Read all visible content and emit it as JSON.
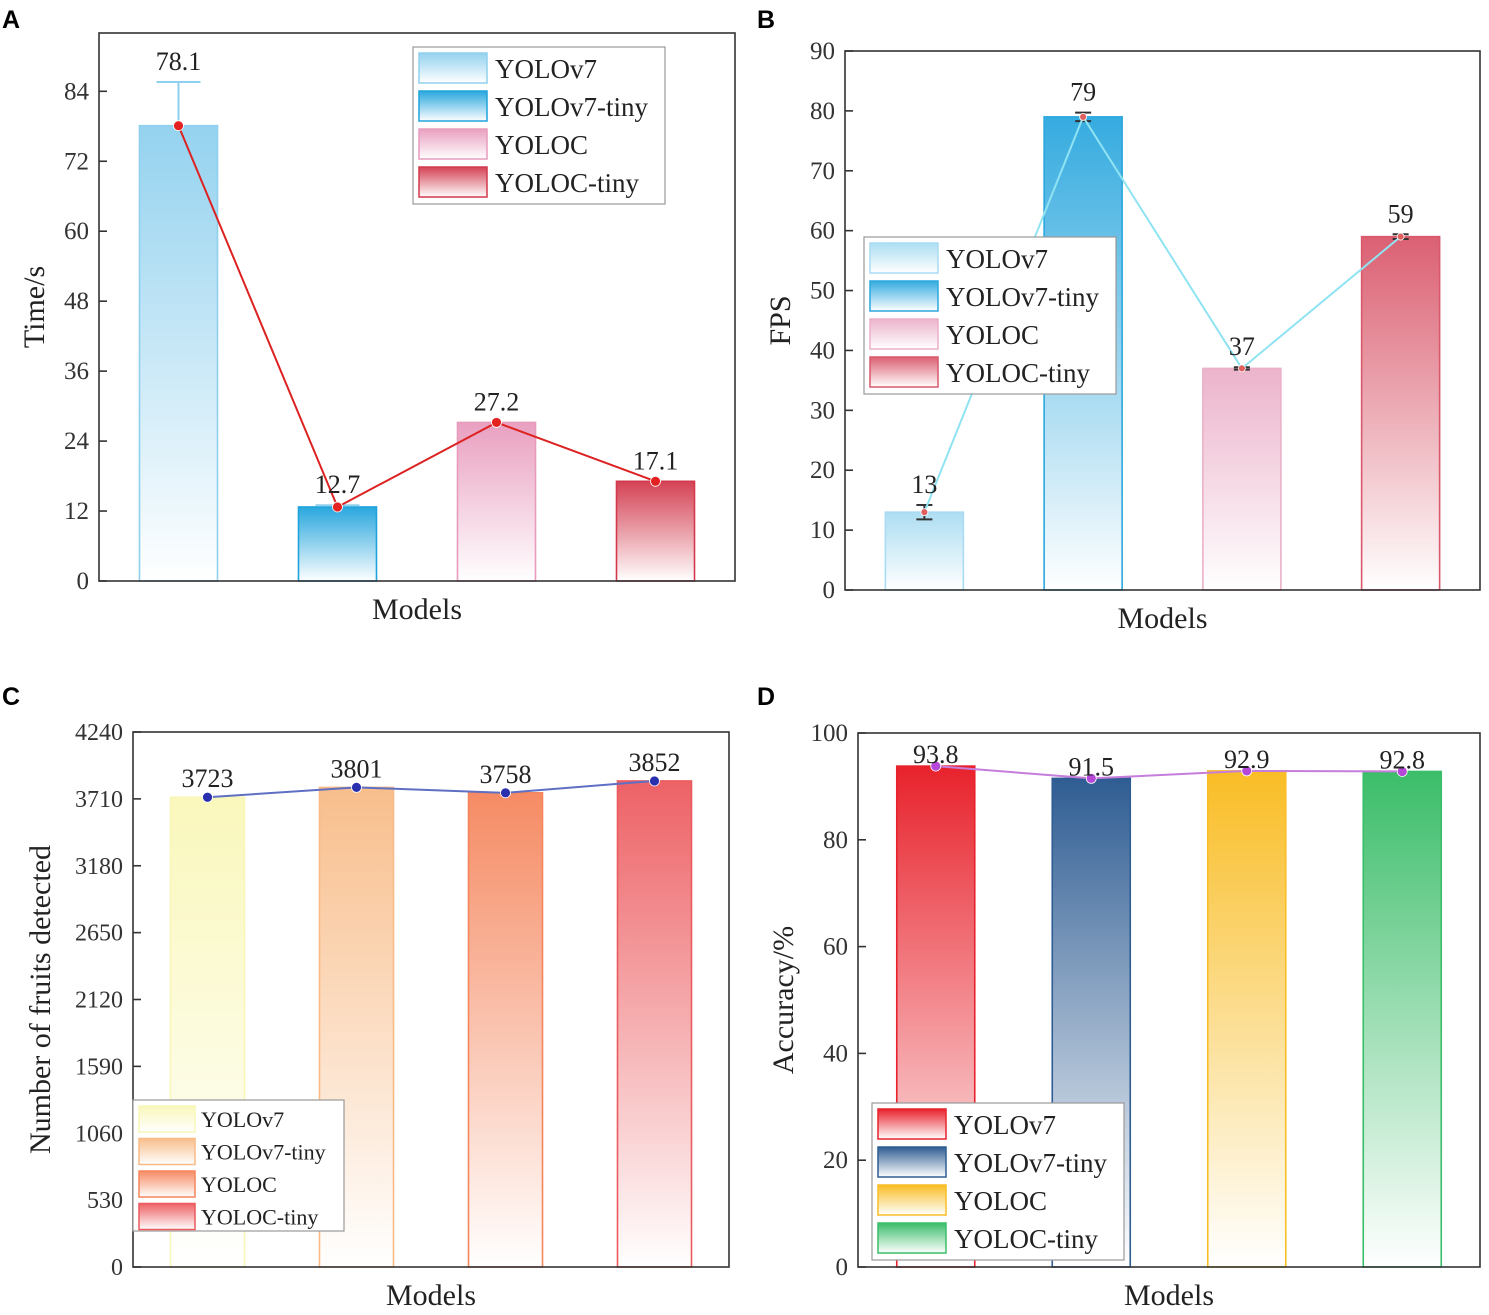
{
  "chart_data": [
    {
      "panel": "A",
      "type": "bar",
      "categories": [
        "YOLOv7",
        "YOLOv7-tiny",
        "YOLOC",
        "YOLOC-tiny"
      ],
      "values": [
        78.1,
        12.7,
        27.2,
        17.1
      ],
      "value_labels": [
        "78.1",
        "12.7",
        "27.2",
        "17.1"
      ],
      "errors": [
        7.5,
        0.3,
        0,
        0
      ],
      "trend_line": true,
      "line_color": "#dd2222",
      "xlabel": "Models",
      "ylabel": "Time/s",
      "ylim": [
        0,
        94
      ],
      "yticks": [
        0,
        12,
        24,
        36,
        48,
        60,
        72,
        84
      ],
      "legend": [
        "YOLOv7",
        "YOLOv7-tiny",
        "YOLOC",
        "YOLOC-tiny"
      ],
      "legend_position": "top-right",
      "colors": [
        "#8fd0ee",
        "#1fa3dc",
        "#e89bbd",
        "#d2394c"
      ]
    },
    {
      "panel": "B",
      "type": "bar",
      "categories": [
        "YOLOv7",
        "YOLOv7-tiny",
        "YOLOC",
        "YOLOC-tiny"
      ],
      "values": [
        13,
        79,
        37,
        59
      ],
      "value_labels": [
        "13",
        "79",
        "37",
        "59"
      ],
      "errors": [
        1.2,
        0.7,
        0.2,
        0.4
      ],
      "trend_line": true,
      "line_color": "#8fe3f2",
      "xlabel": "Models",
      "ylabel": "FPS",
      "ylim": [
        0,
        90
      ],
      "yticks": [
        0,
        10,
        20,
        30,
        40,
        50,
        60,
        70,
        80,
        90
      ],
      "legend": [
        "YOLOv7",
        "YOLOv7-tiny",
        "YOLOC",
        "YOLOC-tiny"
      ],
      "legend_position": "middle-left",
      "colors": [
        "#a9dcf2",
        "#2ba7de",
        "#ebb0c9",
        "#d9586b"
      ]
    },
    {
      "panel": "C",
      "type": "bar",
      "categories": [
        "YOLOv7",
        "YOLOv7-tiny",
        "YOLOC",
        "YOLOC-tiny"
      ],
      "values": [
        3723,
        3801,
        3758,
        3852
      ],
      "value_labels": [
        "3723",
        "3801",
        "3758",
        "3852"
      ],
      "trend_line": true,
      "line_color": "#5e6fc4",
      "xlabel": "Models",
      "ylabel": "Number of fruits detected",
      "ylim": [
        0,
        4240
      ],
      "yticks": [
        0,
        530,
        1060,
        1590,
        2120,
        2650,
        3180,
        3710,
        4240
      ],
      "legend": [
        "YOLOv7",
        "YOLOv7-tiny",
        "YOLOC",
        "YOLOC-tiny"
      ],
      "legend_position": "bottom-left",
      "colors": [
        "#f9f7b8",
        "#f8bb86",
        "#f5855c",
        "#ec5a5e"
      ]
    },
    {
      "panel": "D",
      "type": "bar",
      "categories": [
        "YOLOv7",
        "YOLOv7-tiny",
        "YOLOC",
        "YOLOC-tiny"
      ],
      "values": [
        93.8,
        91.5,
        92.9,
        92.8
      ],
      "value_labels": [
        "93.8",
        "91.5",
        "92.9",
        "92.8"
      ],
      "trend_line": true,
      "line_color": "#c77ddb",
      "xlabel": "Models",
      "ylabel": "Accuracy/%",
      "ylim": [
        0,
        100
      ],
      "yticks": [
        0,
        20,
        40,
        60,
        80,
        100
      ],
      "legend": [
        "YOLOv7",
        "YOLOv7-tiny",
        "YOLOC",
        "YOLOC-tiny"
      ],
      "legend_position": "bottom-left",
      "colors": [
        "#e8222c",
        "#2f5d93",
        "#f9bd25",
        "#3bbd69"
      ]
    }
  ]
}
